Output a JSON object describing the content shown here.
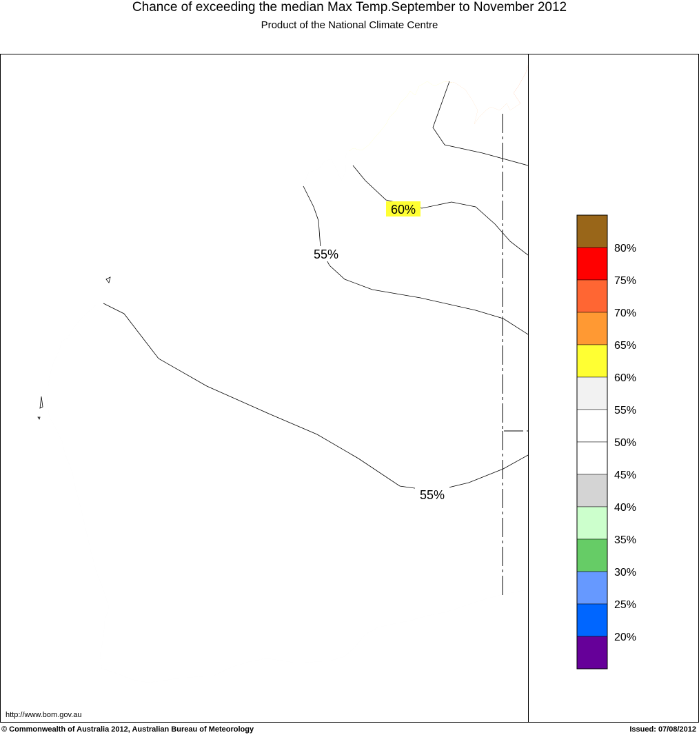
{
  "header": {
    "title": "Chance of exceeding the median Max Temp.September to November 2012",
    "subtitle": "Product of the National Climate Centre"
  },
  "map": {
    "contour_labels": [
      "60%",
      "55%",
      "55%"
    ],
    "region_colors": {
      "land_50_55": "#ffffff",
      "land_55_60": "#f2f2f2",
      "land_60_65": "#ffff33",
      "land_65_70": "#ff9933",
      "land_70_75": "#ff6633"
    }
  },
  "legend": {
    "swatches": [
      {
        "color": "#996619"
      },
      {
        "color": "#ff0000"
      },
      {
        "color": "#ff6633"
      },
      {
        "color": "#ff9933"
      },
      {
        "color": "#ffff33"
      },
      {
        "color": "#f2f2f2"
      },
      {
        "color": "#ffffff"
      },
      {
        "color": "#ffffff"
      },
      {
        "color": "#d4d4d4"
      },
      {
        "color": "#ccffcc"
      },
      {
        "color": "#66cc66"
      },
      {
        "color": "#6699ff"
      },
      {
        "color": "#0066ff"
      },
      {
        "color": "#660099"
      }
    ],
    "labels": [
      "80%",
      "75%",
      "70%",
      "65%",
      "60%",
      "55%",
      "50%",
      "45%",
      "40%",
      "35%",
      "30%",
      "25%",
      "20%"
    ]
  },
  "footer": {
    "url": "http://www.bom.gov.au",
    "copyright": "© Commonwealth of Australia 2012, Australian Bureau of Meteorology",
    "issued": "Issued: 07/08/2012"
  }
}
